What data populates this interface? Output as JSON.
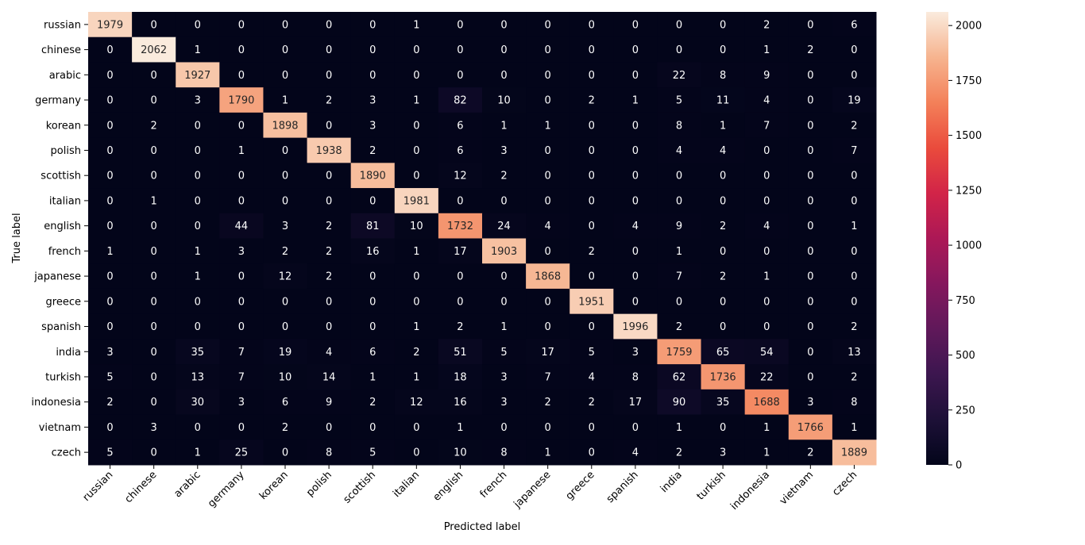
{
  "chart_data": {
    "type": "heatmap",
    "title": "",
    "xlabel": "Predicted label",
    "ylabel": "True label",
    "labels": [
      "russian",
      "chinese",
      "arabic",
      "germany",
      "korean",
      "polish",
      "scottish",
      "italian",
      "english",
      "french",
      "japanese",
      "greece",
      "spanish",
      "india",
      "turkish",
      "indonesia",
      "vietnam",
      "czech"
    ],
    "matrix": [
      [
        1979,
        0,
        0,
        0,
        0,
        0,
        0,
        1,
        0,
        0,
        0,
        0,
        0,
        0,
        0,
        2,
        0,
        6
      ],
      [
        0,
        2062,
        1,
        0,
        0,
        0,
        0,
        0,
        0,
        0,
        0,
        0,
        0,
        0,
        0,
        1,
        2,
        0
      ],
      [
        0,
        0,
        1927,
        0,
        0,
        0,
        0,
        0,
        0,
        0,
        0,
        0,
        0,
        22,
        8,
        9,
        0,
        0
      ],
      [
        0,
        0,
        3,
        1790,
        1,
        2,
        3,
        1,
        82,
        10,
        0,
        2,
        1,
        5,
        11,
        4,
        0,
        19
      ],
      [
        0,
        2,
        0,
        0,
        1898,
        0,
        3,
        0,
        6,
        1,
        1,
        0,
        0,
        8,
        1,
        7,
        0,
        2
      ],
      [
        0,
        0,
        0,
        1,
        0,
        1938,
        2,
        0,
        6,
        3,
        0,
        0,
        0,
        4,
        4,
        0,
        0,
        7
      ],
      [
        0,
        0,
        0,
        0,
        0,
        0,
        1890,
        0,
        12,
        2,
        0,
        0,
        0,
        0,
        0,
        0,
        0,
        0
      ],
      [
        0,
        1,
        0,
        0,
        0,
        0,
        0,
        1981,
        0,
        0,
        0,
        0,
        0,
        0,
        0,
        0,
        0,
        0
      ],
      [
        0,
        0,
        0,
        44,
        3,
        2,
        81,
        10,
        1732,
        24,
        4,
        0,
        4,
        9,
        2,
        4,
        0,
        1
      ],
      [
        1,
        0,
        1,
        3,
        2,
        2,
        16,
        1,
        17,
        1903,
        0,
        2,
        0,
        1,
        0,
        0,
        0,
        0
      ],
      [
        0,
        0,
        1,
        0,
        12,
        2,
        0,
        0,
        0,
        0,
        1868,
        0,
        0,
        7,
        2,
        1,
        0,
        0
      ],
      [
        0,
        0,
        0,
        0,
        0,
        0,
        0,
        0,
        0,
        0,
        0,
        1951,
        0,
        0,
        0,
        0,
        0,
        0
      ],
      [
        0,
        0,
        0,
        0,
        0,
        0,
        0,
        1,
        2,
        1,
        0,
        0,
        1996,
        2,
        0,
        0,
        0,
        2
      ],
      [
        3,
        0,
        35,
        7,
        19,
        4,
        6,
        2,
        51,
        5,
        17,
        5,
        3,
        1759,
        65,
        54,
        0,
        13
      ],
      [
        5,
        0,
        13,
        7,
        10,
        14,
        1,
        1,
        18,
        3,
        7,
        4,
        8,
        62,
        1736,
        22,
        0,
        2
      ],
      [
        2,
        0,
        30,
        3,
        6,
        9,
        2,
        12,
        16,
        3,
        2,
        2,
        17,
        90,
        35,
        1688,
        3,
        8
      ],
      [
        0,
        3,
        0,
        0,
        2,
        0,
        0,
        0,
        1,
        0,
        0,
        0,
        0,
        1,
        0,
        1,
        1766,
        1
      ],
      [
        5,
        0,
        1,
        25,
        0,
        8,
        5,
        0,
        10,
        8,
        1,
        0,
        4,
        2,
        3,
        1,
        2,
        1889
      ]
    ],
    "colorbar": {
      "min": 0,
      "max": 2062,
      "ticks": [
        0,
        250,
        500,
        750,
        1000,
        1250,
        1500,
        1750,
        2000
      ],
      "colormap": "rocket"
    },
    "grid": false,
    "legend": "colorbar-right"
  }
}
